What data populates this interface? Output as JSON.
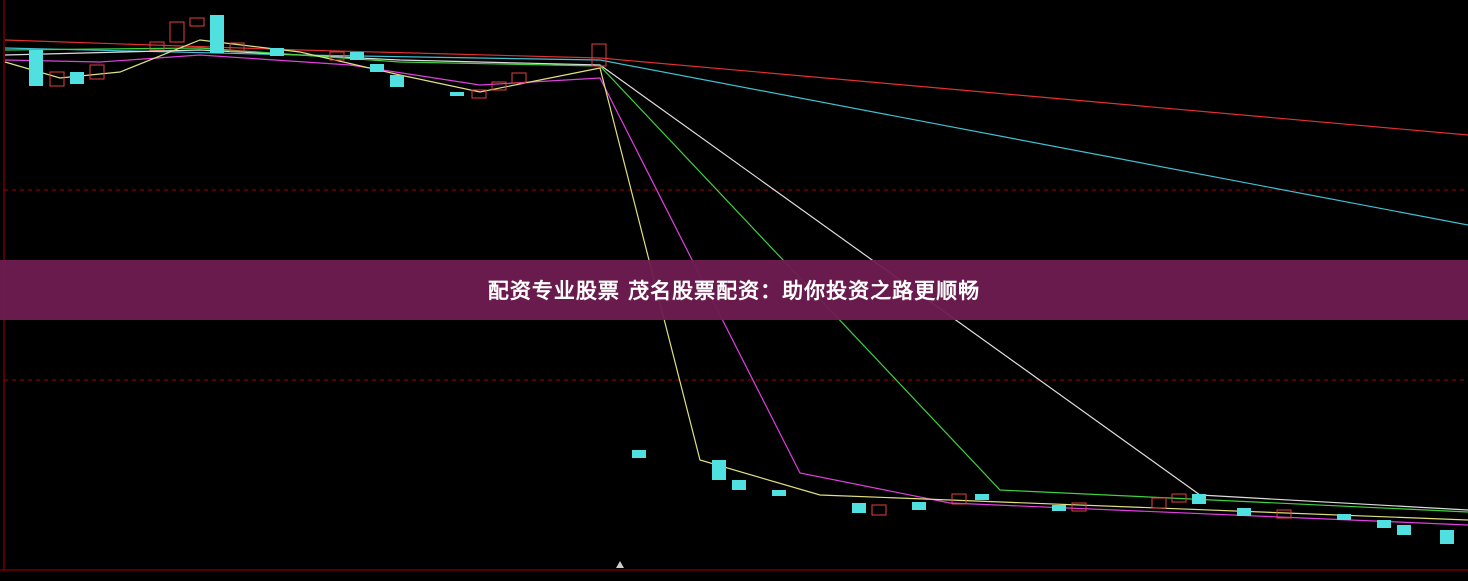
{
  "banner": {
    "title": "配资专业股票 茂名股票配资：助你投资之路更顺畅"
  }
}
